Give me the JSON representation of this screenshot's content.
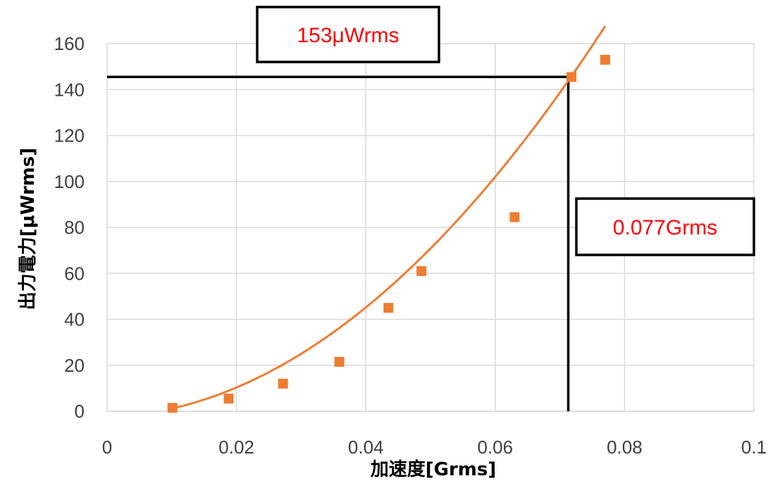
{
  "chart_data": {
    "type": "scatter",
    "xlabel": "加速度[Grms]",
    "ylabel": "出力電力[μWrms]",
    "xlim": [
      0,
      0.1
    ],
    "ylim": [
      0,
      160
    ],
    "x_ticks": [
      "0",
      "0.02",
      "0.04",
      "0.06",
      "0.08",
      "0.1"
    ],
    "y_ticks": [
      "0",
      "20",
      "40",
      "60",
      "80",
      "100",
      "120",
      "140",
      "160"
    ],
    "x_tick_values": [
      0,
      0.02,
      0.04,
      0.06,
      0.08,
      0.1
    ],
    "y_tick_values": [
      0,
      20,
      40,
      60,
      80,
      100,
      120,
      140,
      160
    ],
    "grid": true,
    "series": [
      {
        "marker": "square",
        "color": "#ED7D31",
        "x": [
          0.0101,
          0.0188,
          0.0272,
          0.0359,
          0.0435,
          0.0486,
          0.063,
          0.0718,
          0.077
        ],
        "y": [
          1.5,
          5.5,
          12.0,
          21.5,
          45.0,
          61.0,
          84.5,
          145.5,
          153.0
        ]
      }
    ],
    "trendline": {
      "type": "polynomial-2",
      "color": "#ED7D31",
      "coefficients": [
        -2.52,
        93.3,
        27480
      ],
      "x_range": [
        0.0101,
        0.077
      ]
    },
    "reference_lines": {
      "color": "#000000",
      "y_value": 145.5,
      "x_value": 0.0713
    },
    "annotations": [
      {
        "text": "153μWrms",
        "color": "#FF0000"
      },
      {
        "text": "0.077Grms",
        "color": "#FF0000"
      }
    ]
  }
}
